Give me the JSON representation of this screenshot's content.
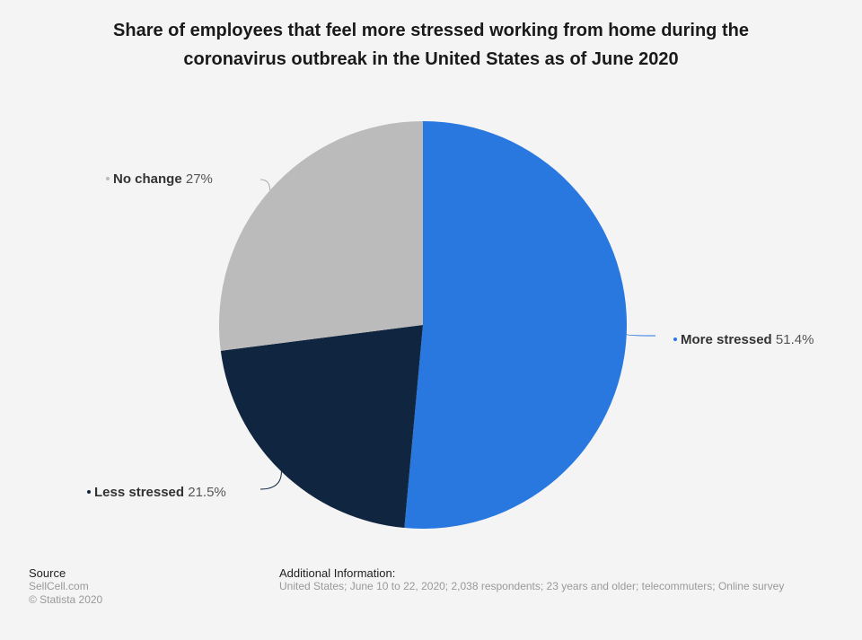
{
  "chart_data": {
    "type": "pie",
    "title": "Share of employees that feel more stressed working from home during the coronavirus outbreak in the United States as of June 2020",
    "slices": [
      {
        "label": "More stressed",
        "value": 51.4,
        "display": "51.4%",
        "color": "#2878e0"
      },
      {
        "label": "Less stressed",
        "value": 21.5,
        "display": "21.5%",
        "color": "#10253f"
      },
      {
        "label": "No change",
        "value": 27,
        "display": "27%",
        "color": "#bbbbbb"
      }
    ],
    "legend": "none"
  },
  "footer": {
    "source_heading": "Source",
    "source_line1": "SellCell.com",
    "source_line2": "© Statista 2020",
    "info_heading": "Additional Information:",
    "info_text": "United States; June 10 to 22, 2020; 2,038 respondents; 23 years and older; telecommuters; Online survey"
  }
}
